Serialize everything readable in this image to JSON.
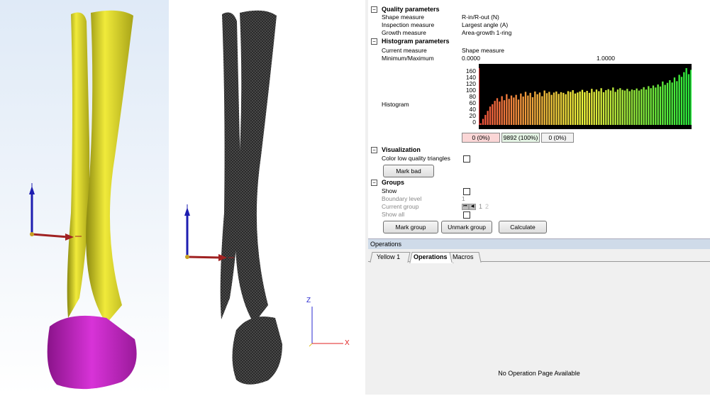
{
  "viewport2_axes": {
    "z": "Z",
    "x": "X"
  },
  "panel": {
    "quality": {
      "title": "Quality parameters",
      "rows": [
        {
          "label": "Shape measure",
          "value": "R-in/R-out (N)"
        },
        {
          "label": "Inspection measure",
          "value": "Largest angle (A)"
        },
        {
          "label": "Growth measure",
          "value": "Area-growth 1-ring"
        }
      ]
    },
    "histogram_params": {
      "title": "Histogram parameters",
      "current_measure_label": "Current measure",
      "current_measure_value": "Shape measure",
      "minmax_label": "Minimum/Maximum",
      "min": "0.0000",
      "max": "1.0000",
      "histogram_label": "Histogram",
      "y_ticks": [
        "160",
        "140",
        "120",
        "100",
        "80",
        "60",
        "40",
        "20",
        "0"
      ],
      "stat_low": "0 (0%)",
      "stat_mid": "9892 (100%)",
      "stat_high": "0 (0%)"
    },
    "visualization": {
      "title": "Visualization",
      "color_low_label": "Color low quality triangles",
      "mark_bad": "Mark bad"
    },
    "groups": {
      "title": "Groups",
      "show_label": "Show",
      "boundary_label": "Boundary level",
      "boundary_value": "1",
      "current_label": "Current group",
      "current_value": "1",
      "current_next": "2",
      "show_all_label": "Show all",
      "mark_group": "Mark group",
      "unmark_group": "Unmark group",
      "calculate": "Calculate"
    }
  },
  "operations": {
    "title": "Operations",
    "tabs": [
      "Yellow 1",
      "Operations",
      "Macros"
    ],
    "empty_text": "No Operation Page Available"
  },
  "chart_data": {
    "type": "bar",
    "x_range": [
      0.0,
      1.0
    ],
    "ylim": [
      0,
      170
    ],
    "values": [
      5,
      18,
      30,
      42,
      55,
      62,
      72,
      80,
      70,
      86,
      74,
      92,
      78,
      88,
      82,
      90,
      76,
      94,
      85,
      99,
      88,
      96,
      83,
      100,
      92,
      97,
      86,
      103,
      95,
      99,
      90,
      97,
      100,
      93,
      98,
      96,
      92,
      101,
      99,
      104,
      94,
      97,
      100,
      105,
      98,
      102,
      96,
      108,
      99,
      106,
      101,
      110,
      98,
      104,
      107,
      103,
      112,
      99,
      106,
      110,
      105,
      103,
      108,
      101,
      106,
      104,
      109,
      103,
      107,
      113,
      106,
      116,
      110,
      118,
      112,
      121,
      115,
      130,
      120,
      126,
      134,
      127,
      142,
      131,
      150,
      144,
      158,
      170,
      152,
      165
    ]
  },
  "colors": {
    "mesh_yellow": "#e8e02a",
    "mesh_magenta": "#c21fc2",
    "panel_header": "#cfdbe9"
  }
}
